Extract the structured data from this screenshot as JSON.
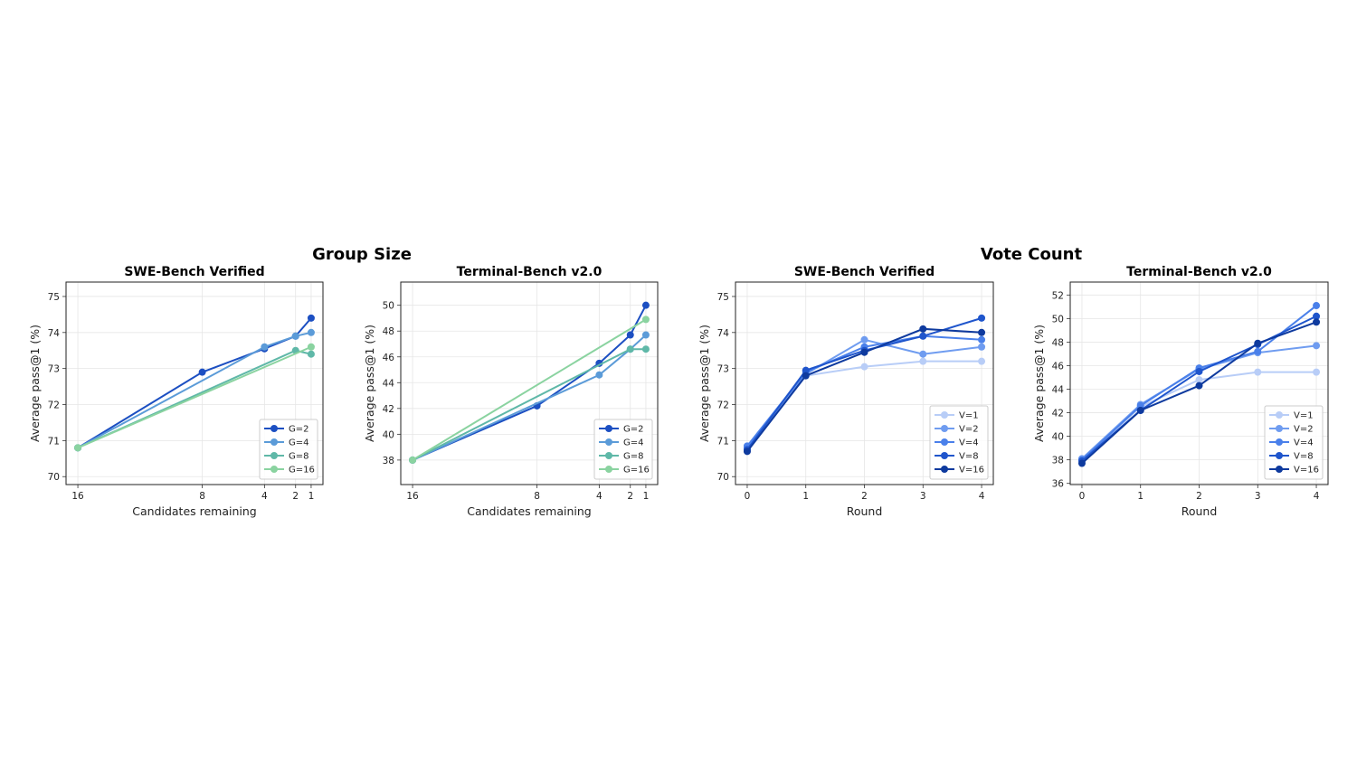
{
  "suptitles": [
    "Group Size",
    "Vote Count"
  ],
  "chart_data": [
    {
      "type": "line",
      "group": "Group Size",
      "title": "SWE-Bench Verified",
      "xlabel": "Candidates remaining",
      "ylabel": "Average pass@1 (%)",
      "x_ticks": [
        16,
        8,
        4,
        2,
        1
      ],
      "x_reversed": true,
      "xlim": [
        16.76,
        0.24
      ],
      "ylim": [
        69.78,
        75.4
      ],
      "y_ticks": [
        70,
        71,
        72,
        73,
        74,
        75
      ],
      "grid": true,
      "legend": "bottom-right",
      "series": [
        {
          "name": "G=2",
          "color": "#1c4fc2",
          "x": [
            16,
            8,
            4,
            2,
            1
          ],
          "y": [
            70.8,
            72.9,
            73.55,
            73.9,
            74.4
          ]
        },
        {
          "name": "G=4",
          "color": "#5b9bd8",
          "x": [
            16,
            4,
            2,
            1
          ],
          "y": [
            70.8,
            73.6,
            73.9,
            74.0
          ]
        },
        {
          "name": "G=8",
          "color": "#5fb8a8",
          "x": [
            16,
            2,
            1
          ],
          "y": [
            70.8,
            73.5,
            73.4
          ]
        },
        {
          "name": "G=16",
          "color": "#8ad3a0",
          "x": [
            16,
            1
          ],
          "y": [
            70.8,
            73.6
          ]
        }
      ]
    },
    {
      "type": "line",
      "group": "Group Size",
      "title": "Terminal-Bench v2.0",
      "xlabel": "Candidates remaining",
      "ylabel": "Average pass@1 (%)",
      "x_ticks": [
        16,
        8,
        4,
        2,
        1
      ],
      "x_reversed": true,
      "xlim": [
        16.76,
        0.24
      ],
      "ylim": [
        36.1,
        51.8
      ],
      "y_ticks": [
        38,
        40,
        42,
        44,
        46,
        48,
        50
      ],
      "grid": true,
      "legend": "bottom-right",
      "series": [
        {
          "name": "G=2",
          "color": "#1c4fc2",
          "x": [
            16,
            8,
            4,
            2,
            1
          ],
          "y": [
            38.0,
            42.2,
            45.5,
            47.7,
            50.0
          ]
        },
        {
          "name": "G=4",
          "color": "#5b9bd8",
          "x": [
            16,
            4,
            2,
            1
          ],
          "y": [
            38.0,
            44.6,
            46.6,
            47.7
          ]
        },
        {
          "name": "G=8",
          "color": "#5fb8a8",
          "x": [
            16,
            2,
            1
          ],
          "y": [
            38.0,
            46.6,
            46.6
          ]
        },
        {
          "name": "G=16",
          "color": "#8ad3a0",
          "x": [
            16,
            1
          ],
          "y": [
            38.0,
            48.9
          ]
        }
      ]
    },
    {
      "type": "line",
      "group": "Vote Count",
      "title": "SWE-Bench Verified",
      "xlabel": "Round",
      "ylabel": "Average pass@1 (%)",
      "x_ticks": [
        0,
        1,
        2,
        3,
        4
      ],
      "x_reversed": false,
      "xlim": [
        -0.2,
        4.2
      ],
      "ylim": [
        69.78,
        75.4
      ],
      "y_ticks": [
        70,
        71,
        72,
        73,
        74,
        75
      ],
      "grid": true,
      "legend": "bottom-right",
      "series": [
        {
          "name": "V=1",
          "color": "#b8cdf7",
          "x": [
            0,
            1,
            2,
            3,
            4
          ],
          "y": [
            70.8,
            72.8,
            73.05,
            73.2,
            73.2
          ]
        },
        {
          "name": "V=2",
          "color": "#6f9cf0",
          "x": [
            0,
            1,
            2,
            3,
            4
          ],
          "y": [
            70.8,
            72.85,
            73.8,
            73.4,
            73.6
          ]
        },
        {
          "name": "V=4",
          "color": "#4a80ea",
          "x": [
            0,
            1,
            2,
            3,
            4
          ],
          "y": [
            70.85,
            72.9,
            73.6,
            73.9,
            73.8
          ]
        },
        {
          "name": "V=8",
          "color": "#1f55cc",
          "x": [
            0,
            1,
            2,
            3,
            4
          ],
          "y": [
            70.75,
            72.95,
            73.5,
            73.9,
            74.4
          ]
        },
        {
          "name": "V=16",
          "color": "#0e3a9e",
          "x": [
            0,
            1,
            2,
            3,
            4
          ],
          "y": [
            70.7,
            72.8,
            73.45,
            74.1,
            74.0
          ]
        }
      ]
    },
    {
      "type": "line",
      "group": "Vote Count",
      "title": "Terminal-Bench v2.0",
      "xlabel": "Round",
      "ylabel": "Average pass@1 (%)",
      "x_ticks": [
        0,
        1,
        2,
        3,
        4
      ],
      "x_reversed": false,
      "xlim": [
        -0.2,
        4.2
      ],
      "ylim": [
        35.9,
        53.1
      ],
      "y_ticks": [
        36,
        38,
        40,
        42,
        44,
        46,
        48,
        50,
        52
      ],
      "grid": true,
      "legend": "bottom-right",
      "series": [
        {
          "name": "V=1",
          "color": "#b8cdf7",
          "x": [
            0,
            1,
            2,
            3,
            4
          ],
          "y": [
            38.0,
            42.5,
            44.8,
            45.45,
            45.45
          ]
        },
        {
          "name": "V=2",
          "color": "#6f9cf0",
          "x": [
            0,
            1,
            2,
            3,
            4
          ],
          "y": [
            38.1,
            42.7,
            45.7,
            47.1,
            47.7
          ]
        },
        {
          "name": "V=4",
          "color": "#4a80ea",
          "x": [
            0,
            1,
            2,
            3,
            4
          ],
          "y": [
            38.0,
            42.6,
            45.8,
            47.2,
            51.1
          ]
        },
        {
          "name": "V=8",
          "color": "#1f55cc",
          "x": [
            0,
            1,
            2,
            3,
            4
          ],
          "y": [
            37.9,
            42.2,
            45.5,
            47.8,
            50.2
          ]
        },
        {
          "name": "V=16",
          "color": "#0e3a9e",
          "x": [
            0,
            1,
            2,
            3,
            4
          ],
          "y": [
            37.7,
            42.2,
            44.3,
            47.9,
            49.7
          ]
        }
      ]
    }
  ]
}
